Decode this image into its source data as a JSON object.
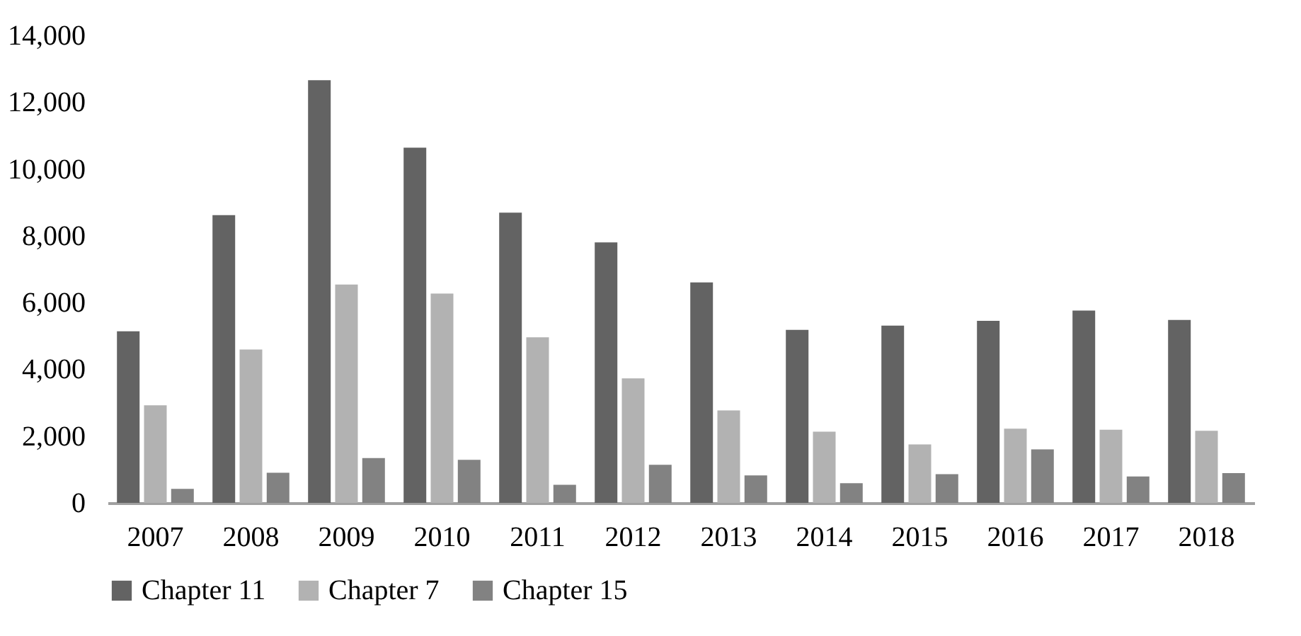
{
  "chart_data": {
    "type": "bar",
    "categories": [
      "2007",
      "2008",
      "2009",
      "2010",
      "2011",
      "2012",
      "2013",
      "2014",
      "2015",
      "2016",
      "2017",
      "2018"
    ],
    "series": [
      {
        "name": "Chapter 11",
        "color": "#636363",
        "values": [
          5140,
          8620,
          12660,
          10640,
          8690,
          7800,
          6600,
          5180,
          5310,
          5450,
          5760,
          5480
        ]
      },
      {
        "name": "Chapter 7",
        "color": "#b2b2b2",
        "values": [
          2920,
          4590,
          6540,
          6270,
          4960,
          3730,
          2770,
          2130,
          1750,
          2220,
          2190,
          2160
        ]
      },
      {
        "name": "Chapter 15",
        "color": "#828282",
        "values": [
          420,
          900,
          1340,
          1290,
          540,
          1140,
          820,
          590,
          860,
          1600,
          790,
          890
        ]
      }
    ],
    "ylim": [
      0,
      14000
    ],
    "yticks": [
      0,
      {
        "value": 2000,
        "label": "2,000"
      },
      {
        "value": 4000,
        "label": "4,000"
      },
      {
        "value": 6000,
        "label": "6,000"
      },
      {
        "value": 8000,
        "label": "8,000"
      },
      {
        "value": 10000,
        "label": "10,000"
      },
      {
        "value": 12000,
        "label": "12,000"
      },
      {
        "value": 14000,
        "label": "14,000"
      }
    ],
    "grid": false,
    "legend": "bottom"
  }
}
